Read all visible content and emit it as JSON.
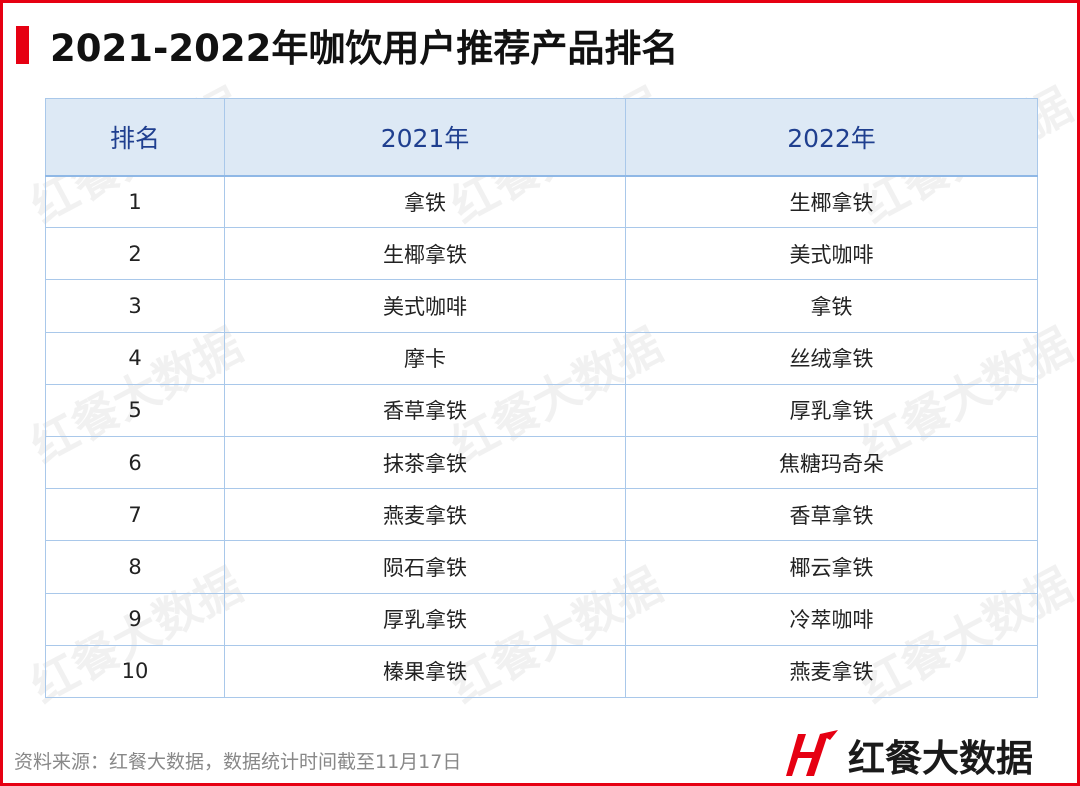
{
  "title": "2021-2022年咖饮用户推荐产品排名",
  "table": {
    "headers": [
      "排名",
      "2021年",
      "2022年"
    ],
    "rows": [
      [
        "1",
        "拿铁",
        "生椰拿铁"
      ],
      [
        "2",
        "生椰拿铁",
        "美式咖啡"
      ],
      [
        "3",
        "美式咖啡",
        "拿铁"
      ],
      [
        "4",
        "摩卡",
        "丝绒拿铁"
      ],
      [
        "5",
        "香草拿铁",
        "厚乳拿铁"
      ],
      [
        "6",
        "抹茶拿铁",
        "焦糖玛奇朵"
      ],
      [
        "7",
        "燕麦拿铁",
        "香草拿铁"
      ],
      [
        "8",
        "陨石拿铁",
        "椰云拿铁"
      ],
      [
        "9",
        "厚乳拿铁",
        "冷萃咖啡"
      ],
      [
        "10",
        "榛果拿铁",
        "燕麦拿铁"
      ]
    ]
  },
  "footer": {
    "source": "资料来源：红餐大数据，数据统计时间截至11月17日"
  },
  "logo": {
    "text": "红餐大数据"
  },
  "watermark": "红餐大数据",
  "colors": {
    "accent": "#e60012",
    "header_bg": "#dde9f5",
    "header_text": "#1f3f8f"
  }
}
